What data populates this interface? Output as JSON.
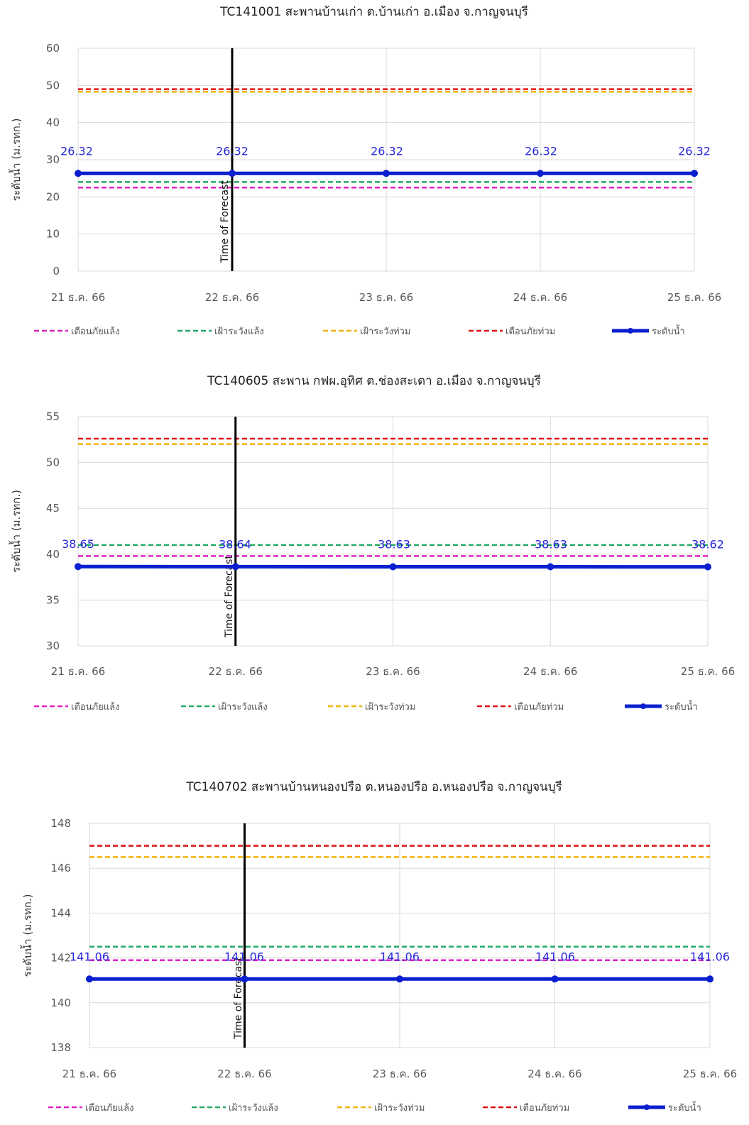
{
  "charts": [
    {
      "title": "TC141001 สะพานบ้านเก่า ต.บ้านเก่า อ.เมือง จ.กาญจนบุรี",
      "ylabel": "ระดับน้ำ (ม.รทก.)",
      "forecast_label": "Time of Forecast",
      "legend": [
        "เตือนภัยแล้ง",
        "เฝ้าระวังแล้ง",
        "เฝ้าระวังท่วม",
        "เตือนภัยท่วม",
        "ระดับน้ำ"
      ]
    },
    {
      "title": "TC140605 สะพาน กฟผ.อุทิศ ต.ช่องสะเดา อ.เมือง จ.กาญจนบุรี",
      "ylabel": "ระดับน้ำ (ม.รทก.)",
      "forecast_label": "Time of Forecast",
      "legend": [
        "เตือนภัยแล้ง",
        "เฝ้าระวังแล้ง",
        "เฝ้าระวังท่วม",
        "เตือนภัยท่วม",
        "ระดับน้ำ"
      ]
    },
    {
      "title": "TC140702 สะพานบ้านหนองปรือ ต.หนองปรือ อ.หนองปรือ จ.กาญจนบุรี",
      "ylabel": "ระดับน้ำ (ม.รทก.)",
      "forecast_label": "Time of Forecast",
      "legend": [
        "เตือนภัยแล้ง",
        "เฝ้าระวังแล้ง",
        "เฝ้าระวังท่วม",
        "เตือนภัยท่วม",
        "ระดับน้ำ"
      ]
    }
  ],
  "colors": {
    "drought_warning": "#e020c8",
    "drought_watch": "#22aa66",
    "flood_watch": "#f0b400",
    "flood_warning": "#e01010",
    "water_level": "#0a1fd0",
    "forecast_line": "#000000",
    "grid": "#d9d9d9"
  },
  "chart_data": [
    {
      "type": "line",
      "title": "TC141001 สะพานบ้านเก่า ต.บ้านเก่า อ.เมือง จ.กาญจนบุรี",
      "ylabel": "ระดับน้ำ (ม.รทก.)",
      "xlabel": "",
      "categories": [
        "21 ธ.ค. 66",
        "22 ธ.ค. 66",
        "23 ธ.ค. 66",
        "24 ธ.ค. 66",
        "25 ธ.ค. 66"
      ],
      "ylim": [
        0,
        60
      ],
      "yticks": [
        0,
        10,
        20,
        30,
        40,
        50,
        60
      ],
      "ytick_labels": [
        "0",
        "10",
        "20",
        "30",
        "40",
        "50",
        "60"
      ],
      "forecast_at": "22 ธ.ค. 66",
      "series": [
        {
          "name": "เตือนภัยแล้ง",
          "style": "dashed",
          "values": [
            22.5,
            22.5,
            22.5,
            22.5,
            22.5
          ]
        },
        {
          "name": "เฝ้าระวังแล้ง",
          "style": "dashed",
          "values": [
            24.0,
            24.0,
            24.0,
            24.0,
            24.0
          ]
        },
        {
          "name": "เฝ้าระวังท่วม",
          "style": "dashed",
          "values": [
            48.3,
            48.3,
            48.3,
            48.3,
            48.3
          ]
        },
        {
          "name": "เตือนภัยท่วม",
          "style": "dashed",
          "values": [
            49.0,
            49.0,
            49.0,
            49.0,
            49.0
          ]
        },
        {
          "name": "ระดับน้ำ",
          "style": "solid-markers",
          "values": [
            26.32,
            26.32,
            26.32,
            26.32,
            26.32
          ],
          "labels": [
            "26.32",
            "26.32",
            "26.32",
            "26.32",
            "26.32"
          ]
        }
      ],
      "grid": true,
      "legend_position": "bottom"
    },
    {
      "type": "line",
      "title": "TC140605 สะพาน กฟผ.อุทิศ ต.ช่องสะเดา อ.เมือง จ.กาญจนบุรี",
      "ylabel": "ระดับน้ำ (ม.รทก.)",
      "xlabel": "",
      "categories": [
        "21 ธ.ค. 66",
        "22 ธ.ค. 66",
        "23 ธ.ค. 66",
        "24 ธ.ค. 66",
        "25 ธ.ค. 66"
      ],
      "ylim": [
        30,
        55
      ],
      "yticks": [
        30,
        35,
        40,
        45,
        50,
        55
      ],
      "ytick_labels": [
        "30",
        "35",
        "40",
        "45",
        "50",
        "55"
      ],
      "forecast_at": "22 ธ.ค. 66",
      "series": [
        {
          "name": "เตือนภัยแล้ง",
          "style": "dashed",
          "values": [
            39.8,
            39.8,
            39.8,
            39.8,
            39.8
          ]
        },
        {
          "name": "เฝ้าระวังแล้ง",
          "style": "dashed",
          "values": [
            41.0,
            41.0,
            41.0,
            41.0,
            41.0
          ]
        },
        {
          "name": "เฝ้าระวังท่วม",
          "style": "dashed",
          "values": [
            52.0,
            52.0,
            52.0,
            52.0,
            52.0
          ]
        },
        {
          "name": "เตือนภัยท่วม",
          "style": "dashed",
          "values": [
            52.6,
            52.6,
            52.6,
            52.6,
            52.6
          ]
        },
        {
          "name": "ระดับน้ำ",
          "style": "solid-markers",
          "values": [
            38.65,
            38.64,
            38.63,
            38.63,
            38.62
          ],
          "labels": [
            "38.65",
            "38.64",
            "38.63",
            "38.63",
            "38.62"
          ]
        }
      ],
      "grid": true,
      "legend_position": "bottom"
    },
    {
      "type": "line",
      "title": "TC140702 สะพานบ้านหนองปรือ ต.หนองปรือ อ.หนองปรือ จ.กาญจนบุรี",
      "ylabel": "ระดับน้ำ (ม.รทก.)",
      "xlabel": "",
      "categories": [
        "21 ธ.ค. 66",
        "22 ธ.ค. 66",
        "23 ธ.ค. 66",
        "24 ธ.ค. 66",
        "25 ธ.ค. 66"
      ],
      "ylim": [
        138,
        148
      ],
      "yticks": [
        138,
        140,
        142,
        144,
        146,
        148
      ],
      "ytick_labels": [
        "138",
        "140",
        "142",
        "144",
        "146",
        "148"
      ],
      "forecast_at": "22 ธ.ค. 66",
      "series": [
        {
          "name": "เตือนภัยแล้ง",
          "style": "dashed",
          "values": [
            141.9,
            141.9,
            141.9,
            141.9,
            141.9
          ]
        },
        {
          "name": "เฝ้าระวังแล้ง",
          "style": "dashed",
          "values": [
            142.5,
            142.5,
            142.5,
            142.5,
            142.5
          ]
        },
        {
          "name": "เฝ้าระวังท่วม",
          "style": "dashed",
          "values": [
            146.5,
            146.5,
            146.5,
            146.5,
            146.5
          ]
        },
        {
          "name": "เตือนภัยท่วม",
          "style": "dashed",
          "values": [
            147.0,
            147.0,
            147.0,
            147.0,
            147.0
          ]
        },
        {
          "name": "ระดับน้ำ",
          "style": "solid-markers",
          "values": [
            141.06,
            141.06,
            141.06,
            141.06,
            141.06
          ],
          "labels": [
            "141.06",
            "141.06",
            "141.06",
            "141.06",
            "141.06"
          ]
        }
      ],
      "grid": true,
      "legend_position": "bottom"
    }
  ]
}
